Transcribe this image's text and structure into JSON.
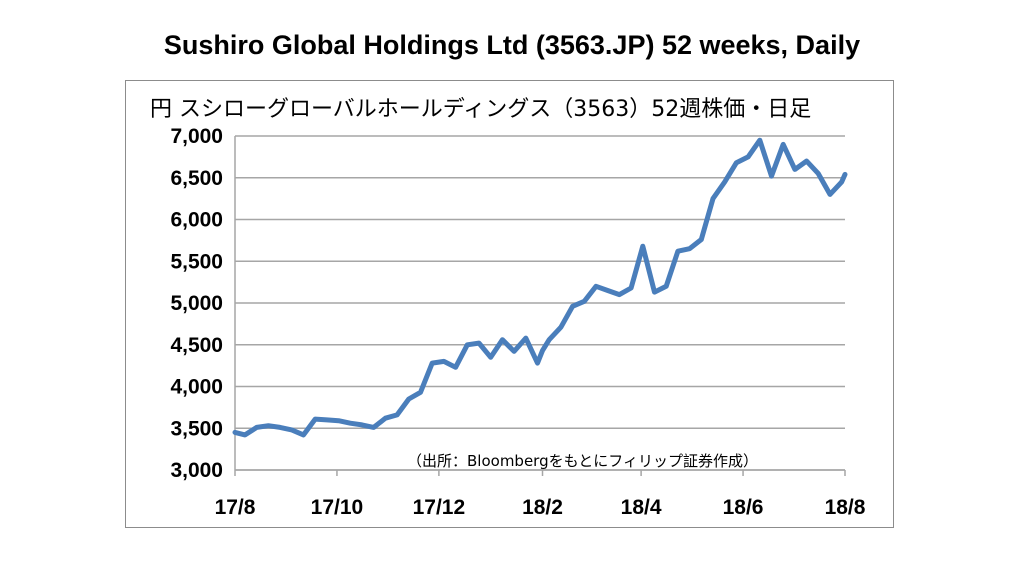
{
  "title": "Sushiro Global Holdings Ltd (3563.JP) 52 weeks, Daily",
  "subtitle": "円 スシローグローバルホールディングス（3563）52週株価・日足",
  "source_note": "（出所：Bloombergをもとにフィリップ証券作成）",
  "colors": {
    "line": "#4a7ebb",
    "grid": "#a6a6a6",
    "border": "#8c8c8c"
  },
  "chart_data": {
    "type": "line",
    "title": "Sushiro Global Holdings Ltd (3563.JP) 52 weeks, Daily",
    "ylabel": "円",
    "ylim": [
      3000,
      7000
    ],
    "yticks": [
      3000,
      3500,
      4000,
      4500,
      5000,
      5500,
      6000,
      6500,
      7000
    ],
    "ytick_labels": [
      "3,000",
      "3,500",
      "4,000",
      "4,500",
      "5,000",
      "5,500",
      "6,000",
      "6,500",
      "7,000"
    ],
    "xticks": [
      "2017-08-01",
      "2017-10-01",
      "2017-12-01",
      "2018-02-01",
      "2018-04-01",
      "2018-06-01",
      "2018-08-01"
    ],
    "xtick_labels": [
      "17/8",
      "17/10",
      "17/12",
      "18/2",
      "18/4",
      "18/6",
      "18/8"
    ],
    "xlim": [
      "2017-08-01",
      "2018-08-01"
    ],
    "grid": "horizontal",
    "series": [
      {
        "x": [
          "2017-08-01",
          "2017-08-07",
          "2017-08-14",
          "2017-08-21",
          "2017-08-28",
          "2017-09-04",
          "2017-09-11",
          "2017-09-18",
          "2017-09-25",
          "2017-10-02",
          "2017-10-09",
          "2017-10-16",
          "2017-10-23",
          "2017-10-30",
          "2017-11-06",
          "2017-11-13",
          "2017-11-20",
          "2017-11-27",
          "2017-12-04",
          "2017-12-11",
          "2017-12-18",
          "2017-12-25",
          "2018-01-01",
          "2018-01-08",
          "2018-01-15",
          "2018-01-22",
          "2018-01-29",
          "2018-02-01",
          "2018-02-05",
          "2018-02-12",
          "2018-02-19",
          "2018-02-26",
          "2018-03-05",
          "2018-03-12",
          "2018-03-19",
          "2018-03-26",
          "2018-04-02",
          "2018-04-09",
          "2018-04-16",
          "2018-04-23",
          "2018-04-30",
          "2018-05-07",
          "2018-05-14",
          "2018-05-21",
          "2018-05-28",
          "2018-06-04",
          "2018-06-11",
          "2018-06-18",
          "2018-06-25",
          "2018-07-02",
          "2018-07-09",
          "2018-07-16",
          "2018-07-23",
          "2018-07-30",
          "2018-08-01"
        ],
        "values": [
          3450,
          3420,
          3510,
          3530,
          3510,
          3480,
          3420,
          3610,
          3600,
          3590,
          3560,
          3540,
          3510,
          3620,
          3660,
          3850,
          3930,
          4280,
          4300,
          4230,
          4500,
          4520,
          4350,
          4560,
          4420,
          4580,
          4280,
          4430,
          4560,
          4710,
          4960,
          5020,
          5200,
          5150,
          5100,
          5180,
          5680,
          5130,
          5200,
          5620,
          5650,
          5760,
          6250,
          6450,
          6680,
          6750,
          6950,
          6520,
          6900,
          6600,
          6700,
          6550,
          6300,
          6450,
          6540
        ]
      }
    ]
  }
}
